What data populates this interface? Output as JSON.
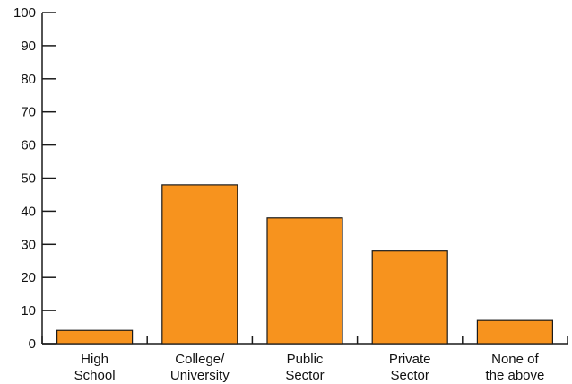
{
  "chart_data": {
    "type": "bar",
    "categories": [
      [
        "High",
        "School"
      ],
      [
        "College/",
        "University"
      ],
      [
        "Public",
        "Sector"
      ],
      [
        "Private",
        "Sector"
      ],
      [
        "None of",
        "the above"
      ]
    ],
    "values": [
      4,
      48,
      38,
      28,
      7
    ],
    "title": "",
    "xlabel": "",
    "ylabel": "",
    "ylim": [
      0,
      100
    ],
    "yticks": [
      0,
      10,
      20,
      30,
      40,
      50,
      60,
      70,
      80,
      90,
      100
    ],
    "grid": false,
    "colors": {
      "bar_fill": "#F7931E",
      "bar_stroke": "#1a1a1a",
      "axis": "#1a1a1a",
      "text": "#111111"
    }
  }
}
